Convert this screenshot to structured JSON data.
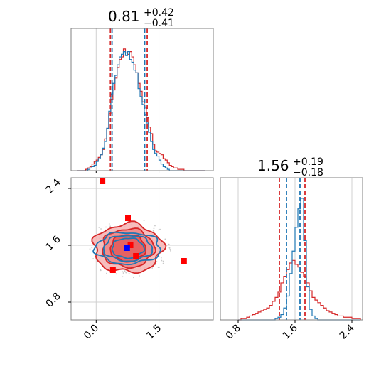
{
  "chart_data": {
    "type": "corner",
    "colors": {
      "blue": "#1f77b4",
      "red": "#d62728",
      "red_fill": "#f08080",
      "square_red": "#ff0000",
      "square_blue": "#0000ff"
    },
    "params": [
      {
        "ticks": [
          "0.0",
          "1.5"
        ],
        "tick_values": [
          0.0,
          1.5
        ],
        "range": [
          -0.6,
          2.8
        ]
      },
      {
        "ticks": [
          "0.8",
          "1.6",
          "2.4"
        ],
        "tick_values": [
          0.8,
          1.6,
          2.4
        ],
        "range": [
          0.55,
          2.55
        ]
      }
    ],
    "panels": [
      {
        "name": "hist-param1",
        "type": "histogram",
        "title_main": "0.81",
        "title_sup": "+0.42",
        "title_sub": "−0.41",
        "x_range": [
          -0.6,
          2.8
        ],
        "quantiles_blue": [
          0.38,
          1.16
        ],
        "quantiles_red": [
          0.34,
          1.22
        ],
        "bins": [
          -0.45,
          -0.4,
          -0.35,
          -0.3,
          -0.25,
          -0.2,
          -0.15,
          -0.1,
          -0.05,
          0.0,
          0.05,
          0.1,
          0.15,
          0.2,
          0.25,
          0.3,
          0.35,
          0.4,
          0.45,
          0.5,
          0.55,
          0.6,
          0.65,
          0.7,
          0.75,
          0.8,
          0.85,
          0.9,
          0.95,
          1.0,
          1.05,
          1.1,
          1.15,
          1.2,
          1.25,
          1.3,
          1.35,
          1.4,
          1.45,
          1.5,
          1.55,
          1.6,
          1.65,
          1.7,
          1.75,
          1.8,
          1.85,
          1.9,
          1.95,
          2.0,
          2.05,
          2.1,
          2.15,
          2.2,
          2.25,
          2.3,
          2.35,
          2.4,
          2.45,
          2.5,
          2.55,
          2.6
        ],
        "hist_blue": [
          0,
          0,
          0,
          0,
          0,
          0.01,
          0.02,
          0.03,
          0.04,
          0.07,
          0.09,
          0.12,
          0.17,
          0.22,
          0.32,
          0.45,
          0.58,
          0.66,
          0.72,
          0.8,
          0.86,
          0.88,
          0.9,
          0.87,
          0.9,
          0.84,
          0.82,
          0.76,
          0.74,
          0.62,
          0.56,
          0.5,
          0.42,
          0.36,
          0.29,
          0.22,
          0.16,
          0.13,
          0.11,
          0.08,
          0.05,
          0.03,
          0.02,
          0.01,
          0.0,
          0,
          0,
          0,
          0,
          0,
          0,
          0,
          0,
          0,
          0,
          0,
          0,
          0,
          0,
          0,
          0
        ],
        "hist_red": [
          0,
          0,
          0,
          0,
          0.01,
          0.02,
          0.03,
          0.05,
          0.07,
          0.08,
          0.1,
          0.12,
          0.16,
          0.24,
          0.32,
          0.43,
          0.54,
          0.61,
          0.7,
          0.78,
          0.84,
          0.86,
          0.92,
          0.89,
          0.88,
          0.9,
          0.86,
          0.8,
          0.74,
          0.66,
          0.6,
          0.52,
          0.48,
          0.4,
          0.33,
          0.28,
          0.2,
          0.15,
          0.14,
          0.13,
          0.12,
          0.09,
          0.08,
          0.06,
          0.04,
          0.03,
          0.02,
          0.02,
          0.01,
          0.01,
          0.01,
          0,
          0,
          0,
          0,
          0,
          0,
          0,
          0,
          0,
          0
        ]
      },
      {
        "name": "hist-param2",
        "type": "histogram",
        "title_main": "1.56",
        "title_sup": "+0.19",
        "title_sub": "−0.18",
        "x_range": [
          0.55,
          2.55
        ],
        "quantiles_blue": [
          1.48,
          1.67
        ],
        "quantiles_red": [
          1.38,
          1.74
        ],
        "bins": [
          0.8,
          0.84,
          0.88,
          0.92,
          0.96,
          1.0,
          1.04,
          1.08,
          1.12,
          1.16,
          1.2,
          1.24,
          1.28,
          1.32,
          1.36,
          1.4,
          1.44,
          1.48,
          1.52,
          1.56,
          1.6,
          1.64,
          1.68,
          1.72,
          1.76,
          1.8,
          1.84,
          1.88,
          1.92,
          1.96,
          2.0,
          2.04,
          2.08,
          2.12,
          2.16,
          2.2,
          2.24,
          2.28,
          2.32,
          2.36,
          2.4,
          2.44,
          2.48
        ],
        "hist_blue": [
          0,
          0,
          0,
          0,
          0,
          0,
          0,
          0,
          0,
          0,
          0,
          0,
          0,
          0.01,
          0.02,
          0.04,
          0.09,
          0.18,
          0.35,
          0.52,
          0.7,
          0.84,
          0.92,
          0.6,
          0.25,
          0.08,
          0.03,
          0.01,
          0,
          0,
          0,
          0,
          0,
          0,
          0,
          0,
          0,
          0,
          0,
          0,
          0,
          0,
          0
        ],
        "hist_red": [
          0,
          0.01,
          0.01,
          0.02,
          0.03,
          0.04,
          0.05,
          0.06,
          0.07,
          0.08,
          0.09,
          0.11,
          0.14,
          0.17,
          0.21,
          0.28,
          0.33,
          0.38,
          0.43,
          0.45,
          0.42,
          0.4,
          0.36,
          0.33,
          0.28,
          0.22,
          0.17,
          0.15,
          0.13,
          0.11,
          0.09,
          0.07,
          0.06,
          0.05,
          0.04,
          0.03,
          0.03,
          0.02,
          0.02,
          0.02,
          0.01,
          0.01,
          0.01
        ]
      },
      {
        "name": "scatter-param1-param2",
        "type": "contour",
        "x_range": [
          -0.6,
          2.8
        ],
        "y_range": [
          0.55,
          2.55
        ],
        "center": [
          0.76,
          1.56
        ],
        "contours_red": [
          {
            "rx": 0.42,
            "ry": 0.19,
            "wobble": 0.05
          },
          {
            "rx": 0.62,
            "ry": 0.27,
            "wobble": 0.06
          },
          {
            "rx": 0.82,
            "ry": 0.34,
            "wobble": 0.08
          }
        ],
        "contours_blue": [
          {
            "rx": 0.38,
            "ry": 0.14,
            "wobble": 0.05
          },
          {
            "rx": 0.58,
            "ry": 0.18,
            "wobble": 0.06
          },
          {
            "rx": 0.78,
            "ry": 0.22,
            "wobble": 0.07
          }
        ],
        "points_red": [
          [
            0.15,
            2.5
          ],
          [
            0.76,
            1.98
          ],
          [
            0.95,
            1.45
          ],
          [
            0.4,
            1.25
          ],
          [
            2.1,
            1.38
          ],
          [
            0.82,
            1.6
          ]
        ],
        "points_blue": [
          [
            0.74,
            1.56
          ]
        ]
      }
    ]
  }
}
